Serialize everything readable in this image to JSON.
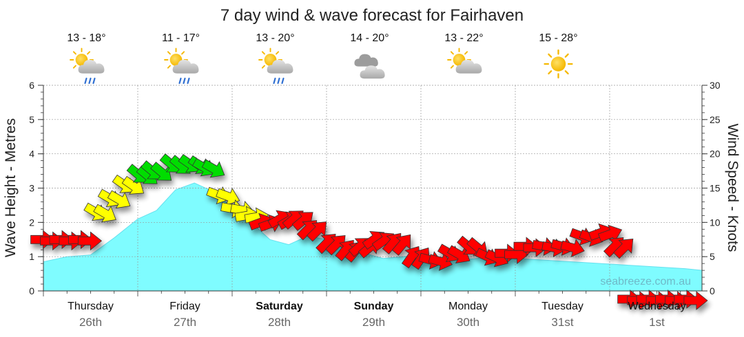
{
  "chart_data": {
    "type": "area",
    "title": "7 day wind & wave forecast for Fairhaven",
    "ylabel_left": "Wave Height - Metres",
    "ylabel_right": "Wind Speed - Knots",
    "ylim_left": [
      0,
      6
    ],
    "ylim_right": [
      0,
      30
    ],
    "yticks_left": [
      "0",
      "1",
      "2",
      "3",
      "4",
      "5",
      "6"
    ],
    "yticks_right": [
      "0",
      "5",
      "10",
      "15",
      "20",
      "25",
      "30"
    ],
    "grid": true,
    "watermark": "seabreeze.com.au",
    "days": [
      {
        "name": "Thursday",
        "date": "26th",
        "bold": false,
        "temp": "13 - 18°",
        "icon": "sun-cloud-rain-icon"
      },
      {
        "name": "Friday",
        "date": "27th",
        "bold": false,
        "temp": "11 - 17°",
        "icon": "sun-cloud-rain-icon"
      },
      {
        "name": "Saturday",
        "date": "28th",
        "bold": true,
        "temp": "13 - 20°",
        "icon": "sun-cloud-rain-icon"
      },
      {
        "name": "Sunday",
        "date": "29th",
        "bold": true,
        "temp": "14 - 20°",
        "icon": "cloud-icon"
      },
      {
        "name": "Monday",
        "date": "30th",
        "bold": false,
        "temp": "13 - 22°",
        "icon": "sun-cloud-icon"
      },
      {
        "name": "Tuesday",
        "date": "31st",
        "bold": false,
        "temp": "15 - 28°",
        "icon": "sun-icon"
      },
      {
        "name": "Wednesday",
        "date": "1st",
        "bold": false,
        "temp": "",
        "icon": ""
      }
    ],
    "wave_series": {
      "name": "Wave Height",
      "color": "#7ffcff",
      "x_days": [
        0,
        0.25,
        0.5,
        0.75,
        1.0,
        1.2,
        1.4,
        1.6,
        1.8,
        2.0,
        2.2,
        2.4,
        2.6,
        2.8,
        3.0,
        3.2,
        3.4,
        3.6,
        3.8,
        4.0,
        4.2,
        4.4,
        4.6,
        4.8,
        5.0,
        5.3,
        5.6,
        5.9,
        6.2,
        6.5,
        6.8,
        7.0
      ],
      "values": [
        0.85,
        1.0,
        1.05,
        1.55,
        2.1,
        2.35,
        2.95,
        3.15,
        2.9,
        2.45,
        2.0,
        1.5,
        1.35,
        1.6,
        1.5,
        1.3,
        1.1,
        0.95,
        1.0,
        1.05,
        0.95,
        0.9,
        0.95,
        1.1,
        0.95,
        0.9,
        0.85,
        0.8,
        0.75,
        0.7,
        0.65,
        0.6
      ]
    },
    "wind_series": {
      "name": "Wind Speed",
      "x_days": [
        -0.12,
        0.08,
        0.28,
        0.45,
        0.6,
        0.75,
        0.9,
        1.05,
        1.25,
        1.45,
        1.6,
        1.75,
        1.9,
        2.05,
        2.2,
        2.4,
        2.55,
        2.7,
        2.9,
        3.1,
        3.25,
        3.4,
        3.6,
        3.8,
        4.0,
        4.2,
        4.4,
        4.6,
        4.8,
        5.0,
        5.2,
        5.4,
        5.6,
        5.8,
        5.95,
        6.1,
        6.3,
        6.5,
        6.7
      ],
      "values": [
        7.5,
        7.5,
        7.5,
        11.5,
        13.5,
        15.5,
        17.0,
        17.5,
        18.5,
        18.5,
        18.0,
        14.0,
        12.0,
        11.0,
        10.0,
        10.5,
        10.5,
        9.0,
        7.0,
        6.0,
        6.5,
        7.5,
        7.0,
        5.0,
        4.5,
        5.5,
        6.5,
        5.0,
        5.5,
        6.5,
        6.5,
        6.5,
        8.0,
        8.5,
        6.5,
        -1.2,
        -1.2,
        -1.2,
        -1.2
      ],
      "direction_deg": [
        0,
        0,
        0,
        330,
        330,
        325,
        320,
        320,
        320,
        325,
        330,
        340,
        350,
        10,
        20,
        30,
        40,
        45,
        45,
        50,
        40,
        35,
        50,
        55,
        345,
        330,
        320,
        335,
        0,
        0,
        350,
        345,
        340,
        20,
        45,
        0,
        0,
        0,
        0
      ],
      "colors": [
        "#ff0000",
        "#ff0000",
        "#ff0000",
        "#ffff00",
        "#ffff00",
        "#ffff00",
        "#00dd00",
        "#00dd00",
        "#00dd00",
        "#00dd00",
        "#00dd00",
        "#ffff00",
        "#ffff00",
        "#ffff00",
        "#ff0000",
        "#ff0000",
        "#ff0000",
        "#ff0000",
        "#ff0000",
        "#ff0000",
        "#ff0000",
        "#ff0000",
        "#ff0000",
        "#ff0000",
        "#ff0000",
        "#ff0000",
        "#ff0000",
        "#ff0000",
        "#ff0000",
        "#ff0000",
        "#ff0000",
        "#ff0000",
        "#ff0000",
        "#ff0000",
        "#ff0000",
        "#ff0000",
        "#ff0000",
        "#ff0000",
        "#ff0000"
      ]
    }
  }
}
